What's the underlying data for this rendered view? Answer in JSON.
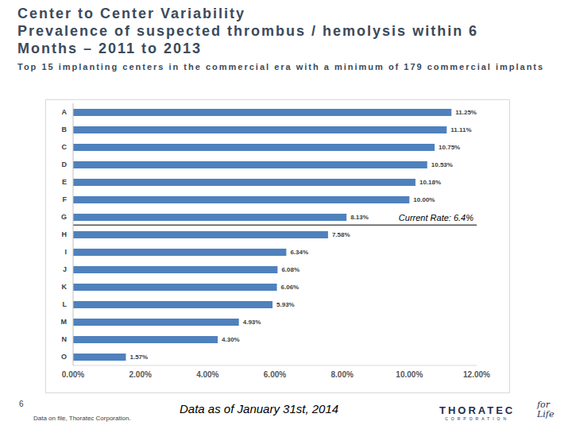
{
  "chart_data": {
    "type": "bar",
    "orientation": "horizontal",
    "title": [
      "Center to Center Variability",
      "Prevalence of suspected thrombus / hemolysis within 6",
      "Months – 2011 to 2013"
    ],
    "subtitle": "Top 15 implanting centers in the commercial era with a minimum of 179 commercial implants",
    "categories": [
      "A",
      "B",
      "C",
      "D",
      "E",
      "F",
      "G",
      "H",
      "I",
      "J",
      "K",
      "L",
      "M",
      "N",
      "O"
    ],
    "values": [
      11.25,
      11.11,
      10.75,
      10.53,
      10.18,
      10.0,
      8.13,
      7.58,
      6.34,
      6.08,
      6.06,
      5.93,
      4.93,
      4.3,
      1.57
    ],
    "value_labels": [
      "11.25%",
      "11.11%",
      "10.75%",
      "10.53%",
      "10.18%",
      "10.00%",
      "8.13%",
      "7.58%",
      "6.34%",
      "6.08%",
      "6.06%",
      "5.93%",
      "4.93%",
      "4.30%",
      "1.57%"
    ],
    "color": "#4f81bd",
    "xlim": [
      0,
      12
    ],
    "xticks": [
      {
        "value": 0,
        "label": "0.00%"
      },
      {
        "value": 2,
        "label": "2.00%"
      },
      {
        "value": 4,
        "label": "4.00%"
      },
      {
        "value": 6,
        "label": "6.00%"
      },
      {
        "value": 8,
        "label": "8.00%"
      },
      {
        "value": 10,
        "label": "10.00%"
      },
      {
        "value": 12,
        "label": "12.00%"
      }
    ],
    "data_labels": true,
    "grid": false,
    "annotations": [
      {
        "text": "Current Rate: 6.4%",
        "value": 6.4
      }
    ]
  },
  "footer": {
    "page": "6",
    "source": "Data on file, Thoratec Corporation.",
    "note": "Data as of January 31st, 2014"
  },
  "logo": {
    "name": "THORATEC",
    "sub": "CORPORATION",
    "tagline": "for Life"
  }
}
